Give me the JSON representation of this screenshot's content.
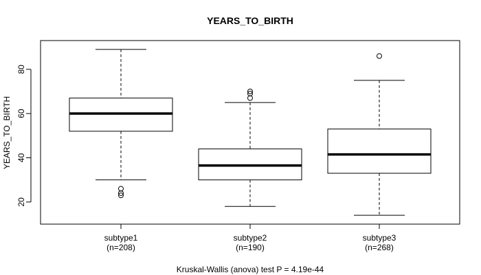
{
  "chart_data": {
    "type": "boxplot",
    "title": "YEARS_TO_BIRTH",
    "xlabel": "Kruskal-Wallis (anova) test P = 4.19e-44",
    "ylabel": "YEARS_TO_BIRTH",
    "ylim": [
      10,
      93
    ],
    "yticks": [
      20,
      40,
      60,
      80
    ],
    "ytick_labels": [
      "20",
      "40",
      "60",
      "80"
    ],
    "categories": [
      "subtype1",
      "subtype2",
      "subtype3"
    ],
    "category_counts": [
      "(n=208)",
      "(n=190)",
      "(n=268)"
    ],
    "boxes": [
      {
        "category": "subtype1",
        "whisker_low": 30,
        "q1": 52,
        "median": 60,
        "q3": 67,
        "whisker_high": 89,
        "outliers": [
          23,
          24,
          26
        ]
      },
      {
        "category": "subtype2",
        "whisker_low": 18,
        "q1": 30,
        "median": 36.5,
        "q3": 44,
        "whisker_high": 65,
        "outliers": [
          67,
          69,
          70
        ]
      },
      {
        "category": "subtype3",
        "whisker_low": 14,
        "q1": 33,
        "median": 41.5,
        "q3": 53,
        "whisker_high": 75,
        "outliers": [
          86
        ]
      }
    ],
    "grid": false,
    "legend": "none"
  }
}
